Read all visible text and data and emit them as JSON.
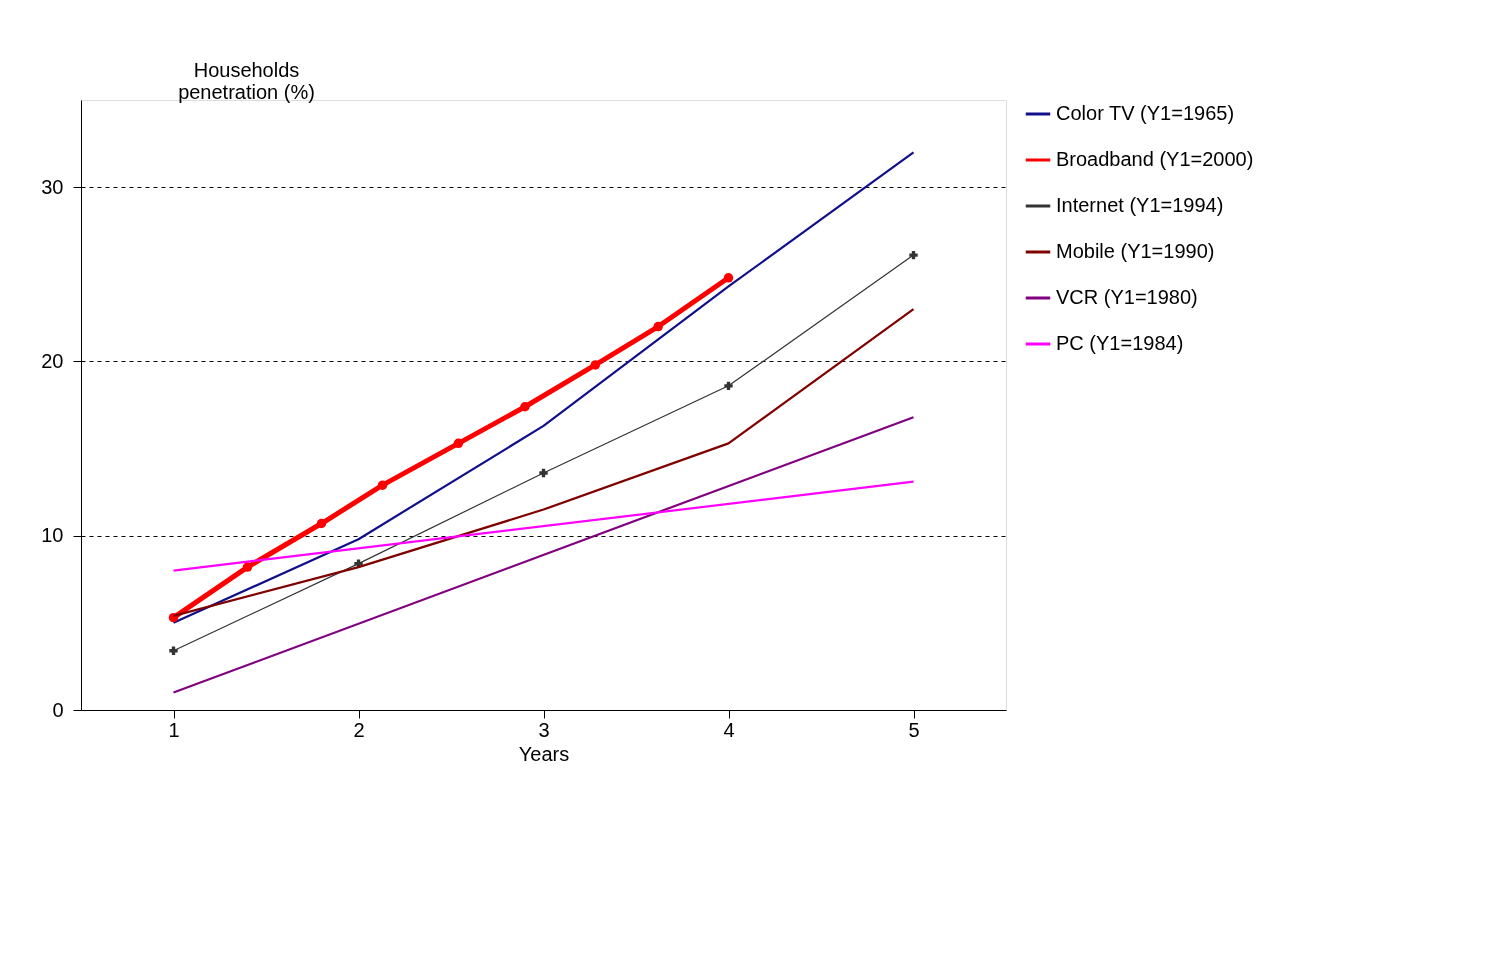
{
  "chart_data": {
    "type": "line",
    "xlabel": "Years",
    "ylabel": "Households penetration (%)",
    "xlim": [
      0.5,
      5.5
    ],
    "xticks": [
      1,
      2,
      3,
      4,
      5
    ],
    "ylim": [
      0,
      35
    ],
    "yticks": [
      0,
      10,
      20,
      30
    ],
    "grid": "y",
    "legend": "right",
    "series": [
      {
        "name": "Color TV (Y1=1965)",
        "color": "#10108a",
        "x": [
          1,
          2,
          3,
          4,
          5
        ],
        "values": [
          5.0,
          9.8,
          16.3,
          24.3,
          32.0
        ],
        "marker": "none"
      },
      {
        "name": "Broadband (Y1=2000)",
        "color": "#ff0000",
        "x": [
          1,
          1.4,
          1.8,
          2.13,
          2.54,
          2.9,
          3.28,
          3.62,
          4
        ],
        "values": [
          5.3,
          8.2,
          10.7,
          12.9,
          15.3,
          17.4,
          19.8,
          22.0,
          24.8
        ],
        "marker": "circle"
      },
      {
        "name": "Internet (Y1=1994)",
        "color": "#333333",
        "x": [
          1,
          2,
          3,
          4,
          5
        ],
        "values": [
          3.4,
          8.4,
          13.6,
          18.6,
          26.1
        ],
        "marker": "cross"
      },
      {
        "name": "Mobile (Y1=1990)",
        "color": "#800000",
        "x": [
          1,
          2,
          3,
          4,
          5
        ],
        "values": [
          5.4,
          8.2,
          11.5,
          15.3,
          23.0
        ],
        "marker": "none"
      },
      {
        "name": "VCR (Y1=1980)",
        "color": "#800080",
        "x": [
          1,
          5
        ],
        "values": [
          1.0,
          16.8
        ],
        "marker": "none"
      },
      {
        "name": "PC (Y1=1984)",
        "color": "#ff00ff",
        "x": [
          1,
          5
        ],
        "values": [
          8.0,
          13.1
        ],
        "marker": "none"
      }
    ]
  }
}
